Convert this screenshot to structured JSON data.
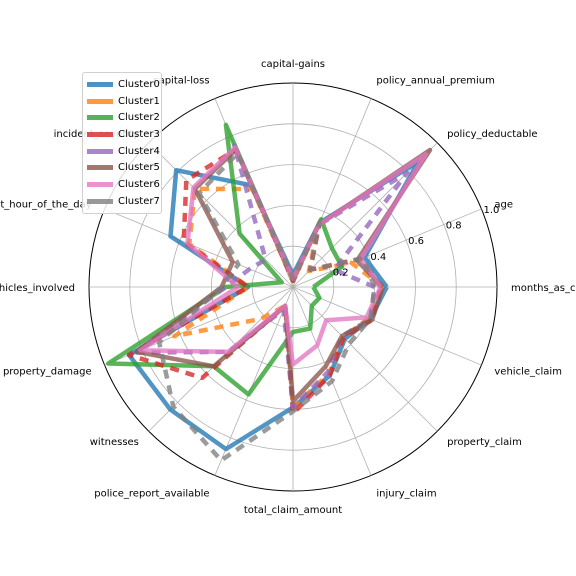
{
  "chart_data": {
    "type": "radar",
    "rmax": 1.0,
    "radial_ticks": [
      0.2,
      0.4,
      0.6,
      0.8,
      1.0
    ],
    "radial_tick_labels": [
      "0.2",
      "0.4",
      "0.6",
      "0.8",
      "1.0"
    ],
    "grid": true,
    "legend_position": "top-left",
    "axes": [
      "months_as_customer",
      "age",
      "policy_deductable",
      "policy_annual_premium",
      "capital-gains",
      "capital-loss",
      "incident_severity",
      "incident_hour_of_the_day",
      "number_of_vehicles_involved",
      "property_damage",
      "witnesses",
      "police_report_available",
      "total_claim_amount",
      "injury_claim",
      "property_claim",
      "vehicle_claim"
    ],
    "series": [
      {
        "name": "Cluster0",
        "color": "#1f77b4",
        "values": [
          0.46,
          0.38,
          0.87,
          0.34,
          0.06,
          0.54,
          0.81,
          0.65,
          0.22,
          0.87,
          0.85,
          0.86,
          0.59,
          0.47,
          0.36,
          0.41
        ]
      },
      {
        "name": "Cluster1",
        "color": "#ff7f0e",
        "values": [
          0.44,
          0.31,
          0.11,
          0.33,
          0.03,
          0.52,
          0.68,
          0.55,
          0.22,
          0.63,
          0.22,
          0.1,
          0.59,
          0.46,
          0.35,
          0.4
        ]
      },
      {
        "name": "Cluster2",
        "color": "#2ca02c",
        "values": [
          0.1,
          0.26,
          0.27,
          0.36,
          0.04,
          0.86,
          0.37,
          0.06,
          0.33,
          0.98,
          0.55,
          0.57,
          0.22,
          0.22,
          0.13,
          0.14
        ]
      },
      {
        "name": "Cluster3",
        "color": "#d62728",
        "values": [
          0.43,
          0.36,
          0.12,
          0.34,
          0.03,
          0.73,
          0.74,
          0.58,
          0.22,
          0.87,
          0.63,
          0.1,
          0.62,
          0.47,
          0.35,
          0.42
        ]
      },
      {
        "name": "Cluster4",
        "color": "#9467bd",
        "values": [
          0.4,
          0.22,
          0.79,
          0.33,
          0.04,
          0.75,
          0.19,
          0.23,
          0.33,
          0.84,
          0.45,
          0.12,
          0.59,
          0.45,
          0.34,
          0.41
        ]
      },
      {
        "name": "Cluster5",
        "color": "#8c564b",
        "values": [
          0.44,
          0.34,
          0.95,
          0.33,
          0.04,
          0.73,
          0.68,
          0.32,
          0.35,
          0.83,
          0.55,
          0.1,
          0.56,
          0.42,
          0.34,
          0.42
        ]
      },
      {
        "name": "Cluster6",
        "color": "#e377c2",
        "values": [
          0.43,
          0.36,
          0.92,
          0.33,
          0.04,
          0.74,
          0.69,
          0.56,
          0.27,
          0.81,
          0.45,
          0.1,
          0.38,
          0.31,
          0.23,
          0.39
        ]
      },
      {
        "name": "Cluster7",
        "color": "#7f7f7f",
        "values": [
          0.4,
          0.37,
          0.12,
          0.34,
          0.04,
          0.71,
          0.65,
          0.29,
          0.35,
          0.71,
          0.83,
          0.92,
          0.61,
          0.5,
          0.39,
          0.41
        ]
      }
    ]
  }
}
